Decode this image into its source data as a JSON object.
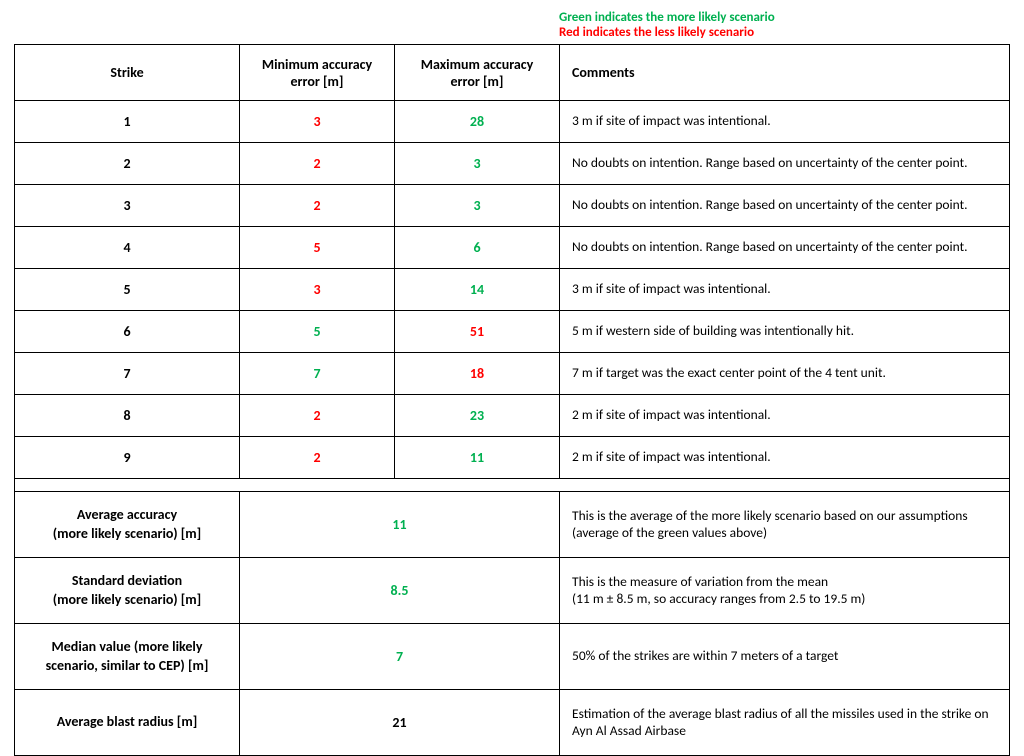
{
  "legend": {
    "green_text": "Green indicates the more likely scenario",
    "red_text": "Red indicates the less likely scenario"
  },
  "headers": {
    "strike": "Strike",
    "min": "Minimum accuracy error [m]",
    "max": "Maximum accuracy error [m]",
    "comments": "Comments"
  },
  "rows": [
    {
      "strike": "1",
      "min": "3",
      "min_color": "#ff0000",
      "max": "28",
      "max_color": "#00b050",
      "comment": "3 m if site of impact was intentional."
    },
    {
      "strike": "2",
      "min": "2",
      "min_color": "#ff0000",
      "max": "3",
      "max_color": "#00b050",
      "comment": "No doubts on intention. Range based on uncertainty of the center point."
    },
    {
      "strike": "3",
      "min": "2",
      "min_color": "#ff0000",
      "max": "3",
      "max_color": "#00b050",
      "comment": "No doubts on intention. Range based on uncertainty of the center point."
    },
    {
      "strike": "4",
      "min": "5",
      "min_color": "#ff0000",
      "max": "6",
      "max_color": "#00b050",
      "comment": "No doubts on intention. Range based on uncertainty of the center point."
    },
    {
      "strike": "5",
      "min": "3",
      "min_color": "#ff0000",
      "max": "14",
      "max_color": "#00b050",
      "comment": "3 m if site of impact was intentional."
    },
    {
      "strike": "6",
      "min": "5",
      "min_color": "#00b050",
      "max": "51",
      "max_color": "#ff0000",
      "comment": "5 m if western side of building was intentionally hit."
    },
    {
      "strike": "7",
      "min": "7",
      "min_color": "#00b050",
      "max": "18",
      "max_color": "#ff0000",
      "comment": "7 m if target was the exact center point of the 4 tent unit."
    },
    {
      "strike": "8",
      "min": "2",
      "min_color": "#ff0000",
      "max": "23",
      "max_color": "#00b050",
      "comment": "2 m if site of impact was intentional."
    },
    {
      "strike": "9",
      "min": "2",
      "min_color": "#ff0000",
      "max": "11",
      "max_color": "#00b050",
      "comment": "2 m if site of impact was intentional."
    }
  ],
  "summary": [
    {
      "label": "Average accuracy\n(more likely scenario) [m]",
      "value": "11",
      "value_color": "#00b050",
      "comment": "This is the average of the more likely scenario based on our assumptions (average of the green values above)"
    },
    {
      "label": "Standard deviation\n(more likely scenario) [m]",
      "value": "8.5",
      "value_color": "#00b050",
      "comment": "This is the measure of variation from the mean\n(11 m ± 8.5 m, so accuracy ranges from 2.5 to 19.5 m)"
    },
    {
      "label": "Median value (more likely scenario, similar to CEP) [m]",
      "value": "7",
      "value_color": "#00b050",
      "comment": "50% of the strikes are within 7 meters of a target"
    },
    {
      "label": "Average blast radius [m]",
      "value": "21",
      "value_color": "#000000",
      "comment": "Estimation of the average blast radius of all the missiles used in the strike on Ayn Al Assad Airbase"
    }
  ],
  "colors": {
    "green": "#00b050",
    "red": "#ff0000",
    "black": "#000000",
    "border": "#000000",
    "background": "#ffffff"
  },
  "font": {
    "family": "Calibri",
    "base_size_pt": 11
  }
}
